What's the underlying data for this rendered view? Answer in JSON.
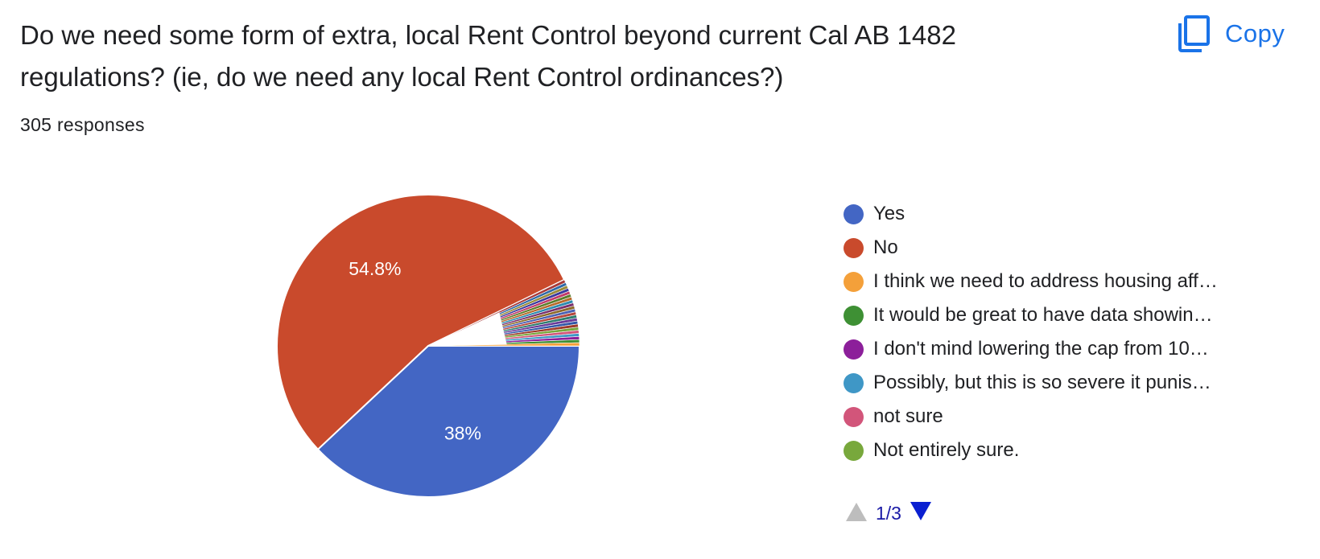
{
  "header": {
    "title": "Do we need some form of extra, local Rent Control beyond current Cal AB 1482 regulations? (ie, do we need any local Rent Control ordinances?)",
    "responses": "305 responses",
    "copy_label": "Copy",
    "copy_icon": "copy-icon"
  },
  "colors": {
    "accent": "#1a73e8",
    "pager_active": "#1a1aa6",
    "pager_disabled": "#bdbdbd"
  },
  "chart_data": {
    "type": "pie",
    "slices": [
      {
        "label": "Yes",
        "value": 38,
        "display": "38%",
        "color": "#4366c4"
      },
      {
        "label": "No",
        "value": 54.8,
        "display": "54.8%",
        "color": "#c94a2c"
      },
      {
        "label": "I think we need to address housing aff…",
        "value": 0.33,
        "display": "",
        "color": "#f4a03a"
      },
      {
        "label": "It would be great to have data showin…",
        "value": 0.33,
        "display": "",
        "color": "#3e9034"
      },
      {
        "label": "I don't mind lowering the cap from 10…",
        "value": 0.33,
        "display": "",
        "color": "#8c1f9a"
      },
      {
        "label": "Possibly, but this is so severe it punis…",
        "value": 0.33,
        "display": "",
        "color": "#3f97c6"
      },
      {
        "label": "not sure",
        "value": 0.33,
        "display": "",
        "color": "#d2557a"
      },
      {
        "label": "Not entirely sure.",
        "value": 0.33,
        "display": "",
        "color": "#78a83c"
      }
    ],
    "other_slices_colors": [
      "#9e3b2a",
      "#3257a8",
      "#6a3b9a",
      "#2f7d6f",
      "#b3473d",
      "#4b62b4",
      "#8d6a2a",
      "#7a2f6e",
      "#2d8bb0",
      "#b86a2c",
      "#5a7d2a",
      "#c23b6a",
      "#3a3a9e",
      "#9a8a3a",
      "#2f6aa8",
      "#a83a3a"
    ],
    "legend_position": "right"
  },
  "pager": {
    "page_text": "1/3",
    "up_icon": "triangle-up-icon",
    "down_icon": "triangle-down-icon"
  }
}
